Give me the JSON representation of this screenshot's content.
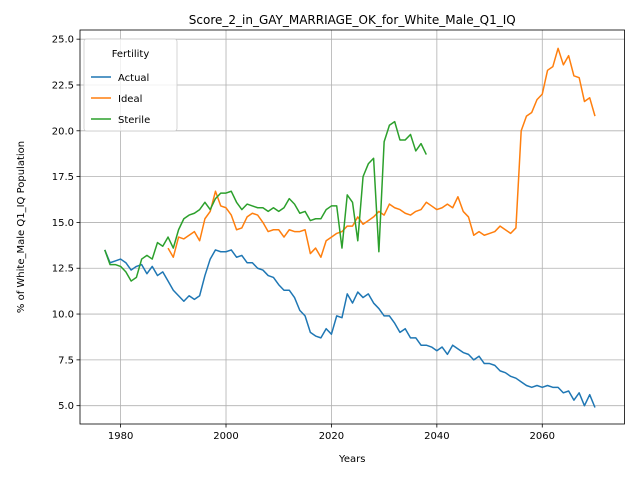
{
  "chart_data": {
    "type": "line",
    "title": "Score_2_in_GAY_MARRIAGE_OK_for_White_Male_Q1_IQ",
    "xlabel": "Years",
    "ylabel": "% of White_Male Q1_IQ Population",
    "xlim": [
      1972.3,
      2075.6
    ],
    "ylim": [
      4.0,
      25.5
    ],
    "xticks": [
      1980,
      2000,
      2020,
      2040,
      2060
    ],
    "yticks": [
      5.0,
      7.5,
      10.0,
      12.5,
      15.0,
      17.5,
      20.0,
      22.5,
      25.0
    ],
    "ytick_labels": [
      "5.0",
      "7.5",
      "10.0",
      "12.5",
      "15.0",
      "17.5",
      "20.0",
      "22.5",
      "25.0"
    ],
    "grid": true,
    "legend": {
      "title": "Fertility",
      "position": "top-left"
    },
    "series": [
      {
        "name": "Actual",
        "color": "#1f77b4",
        "x": [
          1977,
          1978,
          1979,
          1980,
          1981,
          1982,
          1983,
          1984,
          1985,
          1986,
          1987,
          1988,
          1989,
          1990,
          1991,
          1992,
          1993,
          1994,
          1995,
          1996,
          1997,
          1998,
          1999,
          2000,
          2001,
          2002,
          2003,
          2004,
          2005,
          2006,
          2007,
          2008,
          2009,
          2010,
          2011,
          2012,
          2013,
          2014,
          2015,
          2016,
          2017,
          2018,
          2019,
          2020,
          2021,
          2022,
          2023,
          2024,
          2025,
          2026,
          2027,
          2028,
          2029,
          2030,
          2031,
          2032,
          2033,
          2034,
          2035,
          2036,
          2037,
          2038,
          2039,
          2040,
          2041,
          2042,
          2043,
          2044,
          2045,
          2046,
          2047,
          2048,
          2049,
          2050,
          2051,
          2052,
          2053,
          2054,
          2055,
          2056,
          2057,
          2058,
          2059,
          2060,
          2061,
          2062,
          2063,
          2064,
          2065,
          2066,
          2067,
          2068,
          2069,
          2070
        ],
        "y": [
          13.5,
          12.8,
          12.9,
          13.0,
          12.8,
          12.4,
          12.6,
          12.7,
          12.2,
          12.6,
          12.1,
          12.3,
          11.8,
          11.3,
          11.0,
          10.7,
          11.0,
          10.8,
          11.0,
          12.1,
          13.0,
          13.5,
          13.4,
          13.4,
          13.5,
          13.1,
          13.2,
          12.8,
          12.8,
          12.5,
          12.4,
          12.1,
          12.0,
          11.6,
          11.3,
          11.3,
          10.9,
          10.2,
          9.9,
          9.0,
          8.8,
          8.7,
          9.2,
          8.9,
          9.9,
          9.8,
          11.1,
          10.6,
          11.2,
          10.9,
          11.1,
          10.6,
          10.3,
          9.9,
          9.9,
          9.5,
          9.0,
          9.2,
          8.7,
          8.7,
          8.3,
          8.3,
          8.2,
          8.0,
          8.2,
          7.8,
          8.3,
          8.1,
          7.9,
          7.8,
          7.5,
          7.7,
          7.3,
          7.3,
          7.2,
          6.9,
          6.8,
          6.6,
          6.5,
          6.3,
          6.1,
          6.0,
          6.1,
          6.0,
          6.1,
          6.0,
          6.0,
          5.7,
          5.8,
          5.3,
          5.7,
          5.0,
          5.6,
          4.9
        ]
      },
      {
        "name": "Ideal",
        "color": "#ff7f0e",
        "x": [
          1989,
          1990,
          1991,
          1992,
          1993,
          1994,
          1995,
          1996,
          1997,
          1998,
          1999,
          2000,
          2001,
          2002,
          2003,
          2004,
          2005,
          2006,
          2007,
          2008,
          2009,
          2010,
          2011,
          2012,
          2013,
          2014,
          2015,
          2016,
          2017,
          2018,
          2019,
          2020,
          2021,
          2022,
          2023,
          2024,
          2025,
          2026,
          2027,
          2028,
          2029,
          2030,
          2031,
          2032,
          2033,
          2034,
          2035,
          2036,
          2037,
          2038,
          2039,
          2040,
          2041,
          2042,
          2043,
          2044,
          2045,
          2046,
          2047,
          2048,
          2049,
          2050,
          2051,
          2052,
          2053,
          2054,
          2055,
          2056,
          2057,
          2058,
          2059,
          2060,
          2061,
          2062,
          2063,
          2064,
          2065,
          2066,
          2067,
          2068,
          2069,
          2070
        ],
        "y": [
          13.6,
          13.1,
          14.2,
          14.1,
          14.3,
          14.5,
          14.0,
          15.2,
          15.6,
          16.7,
          15.9,
          15.8,
          15.4,
          14.6,
          14.7,
          15.3,
          15.5,
          15.4,
          15.0,
          14.5,
          14.6,
          14.6,
          14.2,
          14.6,
          14.5,
          14.5,
          14.6,
          13.3,
          13.6,
          13.1,
          14.0,
          14.2,
          14.4,
          14.5,
          14.8,
          14.8,
          15.3,
          14.9,
          15.1,
          15.3,
          15.6,
          15.4,
          16.0,
          15.8,
          15.7,
          15.5,
          15.4,
          15.6,
          15.7,
          16.1,
          15.9,
          15.7,
          15.8,
          16.0,
          15.8,
          16.4,
          15.6,
          15.3,
          14.3,
          14.5,
          14.3,
          14.4,
          14.5,
          14.8,
          14.6,
          14.4,
          14.7,
          20.0,
          20.8,
          21.0,
          21.7,
          22.0,
          23.3,
          23.5,
          24.5,
          23.6,
          24.1,
          23.0,
          22.9,
          21.6,
          21.8,
          20.8
        ]
      },
      {
        "name": "Sterile",
        "color": "#2ca02c",
        "x": [
          1977,
          1978,
          1979,
          1980,
          1981,
          1982,
          1983,
          1984,
          1985,
          1986,
          1987,
          1988,
          1989,
          1990,
          1991,
          1992,
          1993,
          1994,
          1995,
          1996,
          1997,
          1998,
          1999,
          2000,
          2001,
          2002,
          2003,
          2004,
          2005,
          2006,
          2007,
          2008,
          2009,
          2010,
          2011,
          2012,
          2013,
          2014,
          2015,
          2016,
          2017,
          2018,
          2019,
          2020,
          2021,
          2022,
          2023,
          2024,
          2025,
          2026,
          2027,
          2028,
          2029,
          2030,
          2031,
          2032,
          2033,
          2034,
          2035,
          2036,
          2037,
          2038
        ],
        "y": [
          13.5,
          12.7,
          12.7,
          12.6,
          12.3,
          11.8,
          12.0,
          13.0,
          13.2,
          13.0,
          13.9,
          13.7,
          14.2,
          13.6,
          14.6,
          15.2,
          15.4,
          15.5,
          15.7,
          16.1,
          15.7,
          16.3,
          16.6,
          16.6,
          16.7,
          16.1,
          15.7,
          16.0,
          15.9,
          15.8,
          15.8,
          15.6,
          15.8,
          15.6,
          15.8,
          16.3,
          16.0,
          15.5,
          15.6,
          15.1,
          15.2,
          15.2,
          15.7,
          15.9,
          15.9,
          13.6,
          16.5,
          16.1,
          14.0,
          17.5,
          18.2,
          18.5,
          13.4,
          19.4,
          20.3,
          20.5,
          19.5,
          19.5,
          19.8,
          18.9,
          19.3,
          18.7
        ]
      }
    ]
  }
}
